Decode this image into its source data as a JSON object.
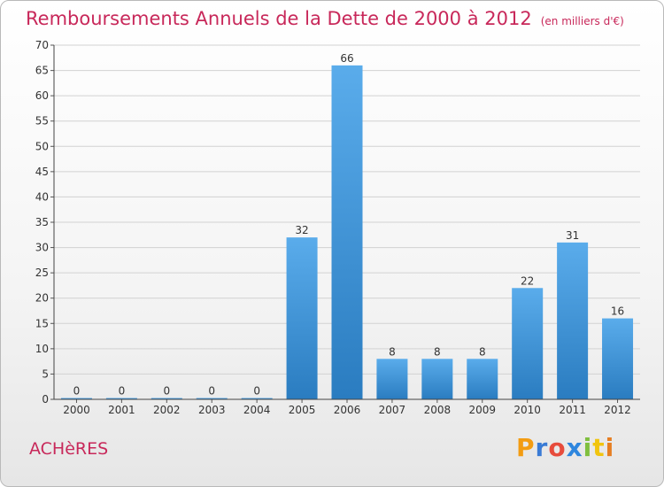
{
  "header": {
    "title": "Remboursements Annuels de la Dette de 2000 à 2012",
    "subtitle": "(en milliers d'€)"
  },
  "town": "ACHèRES",
  "logo": {
    "text": "Proxiti",
    "letter_colors": [
      "#f39c12",
      "#3a7bd5",
      "#e74c3c",
      "#2e86de",
      "#7fbf3f",
      "#f1c40f",
      "#e67e22"
    ]
  },
  "chart_data": {
    "type": "bar",
    "categories": [
      "2000",
      "2001",
      "2002",
      "2003",
      "2004",
      "2005",
      "2006",
      "2007",
      "2008",
      "2009",
      "2010",
      "2011",
      "2012"
    ],
    "values": [
      0,
      0,
      0,
      0,
      0,
      32,
      66,
      8,
      8,
      8,
      22,
      31,
      16
    ],
    "data_labels": [
      "0",
      "0",
      "0",
      "0",
      "0",
      "32",
      "66",
      "8",
      "8",
      "8",
      "22",
      "31",
      "16"
    ],
    "ylim": [
      0,
      70
    ],
    "yticks": [
      0,
      5,
      10,
      15,
      20,
      25,
      30,
      35,
      40,
      45,
      50,
      55,
      60,
      65,
      70
    ],
    "grid": true,
    "bar_color": "#3d95d6"
  }
}
